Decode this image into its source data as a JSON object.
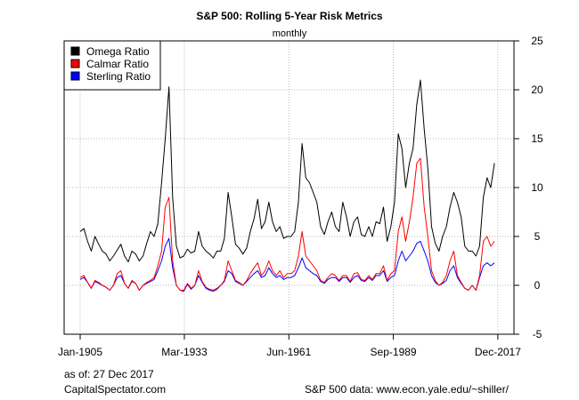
{
  "chart_data": {
    "type": "line",
    "title": "S&P 500: Rolling 5-Year Risk Metrics",
    "subtitle": "monthly",
    "xlabel": "",
    "ylabel": "",
    "x_range": [
      1905.0,
      2017.95
    ],
    "ylim": [
      -5,
      25
    ],
    "y_ticks": [
      -5,
      0,
      5,
      10,
      15,
      20,
      25
    ],
    "x_ticks": [
      {
        "label": "Jan-1905",
        "x": 1905.0
      },
      {
        "label": "Mar-1933",
        "x": 1933.17
      },
      {
        "label": "Jun-1961",
        "x": 1961.42
      },
      {
        "label": "Sep-1989",
        "x": 1989.67
      },
      {
        "label": "Dec-2017",
        "x": 2017.92
      }
    ],
    "grid": true,
    "y_axis_side": "right",
    "legend_position": "top-left",
    "series": [
      {
        "name": "Omega Ratio",
        "color": "#000000",
        "x": [
          1905,
          1906,
          1907,
          1908,
          1909,
          1910,
          1911,
          1912,
          1913,
          1914,
          1915,
          1916,
          1917,
          1918,
          1919,
          1920,
          1921,
          1922,
          1923,
          1924,
          1925,
          1926,
          1927,
          1928,
          1929,
          1930,
          1931,
          1932,
          1933,
          1934,
          1935,
          1936,
          1937,
          1938,
          1939,
          1940,
          1941,
          1942,
          1943,
          1944,
          1945,
          1946,
          1947,
          1948,
          1949,
          1950,
          1951,
          1952,
          1953,
          1954,
          1955,
          1956,
          1957,
          1958,
          1959,
          1960,
          1961,
          1962,
          1963,
          1964,
          1965,
          1966,
          1967,
          1968,
          1969,
          1970,
          1971,
          1972,
          1973,
          1974,
          1975,
          1976,
          1977,
          1978,
          1979,
          1980,
          1981,
          1982,
          1983,
          1984,
          1985,
          1986,
          1987,
          1988,
          1989,
          1990,
          1991,
          1992,
          1993,
          1994,
          1995,
          1996,
          1997,
          1998,
          1999,
          2000,
          2001,
          2002,
          2003,
          2004,
          2005,
          2006,
          2007,
          2008,
          2009,
          2010,
          2011,
          2012,
          2013,
          2014,
          2015,
          2016,
          2017
        ],
        "values": [
          5.5,
          5.8,
          4.5,
          3.5,
          5.0,
          4.2,
          3.5,
          3.2,
          2.5,
          3.0,
          3.6,
          4.2,
          3.0,
          2.4,
          3.5,
          3.2,
          2.5,
          3.0,
          4.3,
          5.5,
          5.0,
          6.3,
          10.5,
          15.0,
          20.3,
          9.0,
          4.0,
          2.8,
          3.0,
          3.7,
          3.3,
          3.5,
          5.5,
          4.0,
          3.5,
          3.2,
          2.8,
          3.5,
          3.5,
          4.8,
          9.5,
          7.0,
          4.2,
          3.8,
          3.2,
          3.8,
          5.5,
          6.8,
          8.8,
          5.8,
          6.5,
          8.5,
          6.5,
          5.5,
          6.0,
          4.8,
          5.0,
          5.0,
          5.5,
          8.5,
          14.5,
          11.0,
          10.5,
          9.5,
          8.5,
          6.0,
          5.2,
          6.5,
          7.5,
          6.0,
          5.5,
          8.5,
          7.0,
          5.0,
          6.5,
          7.0,
          5.2,
          5.0,
          6.0,
          5.0,
          6.5,
          6.3,
          8.0,
          4.5,
          6.0,
          8.5,
          15.5,
          14.0,
          10.0,
          12.5,
          14.0,
          18.5,
          21.0,
          16.0,
          12.0,
          6.0,
          4.3,
          3.5,
          5.0,
          6.0,
          8.0,
          9.5,
          8.5,
          7.0,
          4.0,
          3.5,
          3.5,
          3.0,
          4.0,
          9.0,
          11.0,
          10.0,
          12.5
        ]
      },
      {
        "name": "Calmar Ratio",
        "color": "#ff0000",
        "x": [
          1905,
          1906,
          1907,
          1908,
          1909,
          1910,
          1911,
          1912,
          1913,
          1914,
          1915,
          1916,
          1917,
          1918,
          1919,
          1920,
          1921,
          1922,
          1923,
          1924,
          1925,
          1926,
          1927,
          1928,
          1929,
          1930,
          1931,
          1932,
          1933,
          1934,
          1935,
          1936,
          1937,
          1938,
          1939,
          1940,
          1941,
          1942,
          1943,
          1944,
          1945,
          1946,
          1947,
          1948,
          1949,
          1950,
          1951,
          1952,
          1953,
          1954,
          1955,
          1956,
          1957,
          1958,
          1959,
          1960,
          1961,
          1962,
          1963,
          1964,
          1965,
          1966,
          1967,
          1968,
          1969,
          1970,
          1971,
          1972,
          1973,
          1974,
          1975,
          1976,
          1977,
          1978,
          1979,
          1980,
          1981,
          1982,
          1983,
          1984,
          1985,
          1986,
          1987,
          1988,
          1989,
          1990,
          1991,
          1992,
          1993,
          1994,
          1995,
          1996,
          1997,
          1998,
          1999,
          2000,
          2001,
          2002,
          2003,
          2004,
          2005,
          2006,
          2007,
          2008,
          2009,
          2010,
          2011,
          2012,
          2013,
          2014,
          2015,
          2016,
          2017
        ],
        "values": [
          0.8,
          1.0,
          0.3,
          -0.3,
          0.5,
          0.3,
          0.0,
          -0.2,
          -0.5,
          0.0,
          1.2,
          1.5,
          0.2,
          -0.3,
          0.5,
          0.2,
          -0.5,
          0.0,
          0.3,
          0.5,
          0.8,
          2.0,
          3.5,
          8.0,
          9.0,
          2.5,
          0.0,
          -0.5,
          -0.5,
          0.2,
          -0.3,
          0.0,
          1.5,
          0.4,
          -0.2,
          -0.4,
          -0.5,
          -0.3,
          0.0,
          0.5,
          2.5,
          1.5,
          0.5,
          0.3,
          0.0,
          0.5,
          1.2,
          1.8,
          2.3,
          1.0,
          1.5,
          2.5,
          1.5,
          1.0,
          1.5,
          0.8,
          1.2,
          1.2,
          1.5,
          3.0,
          5.5,
          3.0,
          2.5,
          2.0,
          1.5,
          0.5,
          0.3,
          0.8,
          1.2,
          1.0,
          0.5,
          1.0,
          1.0,
          0.4,
          1.2,
          1.3,
          0.6,
          0.5,
          1.0,
          0.6,
          1.2,
          1.2,
          2.0,
          0.5,
          1.2,
          1.5,
          5.5,
          7.0,
          4.5,
          6.5,
          9.0,
          12.5,
          13.0,
          8.0,
          5.0,
          1.5,
          0.5,
          0.0,
          0.3,
          1.0,
          2.5,
          3.5,
          1.0,
          0.3,
          -0.3,
          -0.5,
          0.0,
          -0.5,
          1.0,
          4.5,
          5.0,
          4.0,
          4.5
        ]
      },
      {
        "name": "Sterling Ratio",
        "color": "#0000ff",
        "x": [
          1905,
          1906,
          1907,
          1908,
          1909,
          1910,
          1911,
          1912,
          1913,
          1914,
          1915,
          1916,
          1917,
          1918,
          1919,
          1920,
          1921,
          1922,
          1923,
          1924,
          1925,
          1926,
          1927,
          1928,
          1929,
          1930,
          1931,
          1932,
          1933,
          1934,
          1935,
          1936,
          1937,
          1938,
          1939,
          1940,
          1941,
          1942,
          1943,
          1944,
          1945,
          1946,
          1947,
          1948,
          1949,
          1950,
          1951,
          1952,
          1953,
          1954,
          1955,
          1956,
          1957,
          1958,
          1959,
          1960,
          1961,
          1962,
          1963,
          1964,
          1965,
          1966,
          1967,
          1968,
          1969,
          1970,
          1971,
          1972,
          1973,
          1974,
          1975,
          1976,
          1977,
          1978,
          1979,
          1980,
          1981,
          1982,
          1983,
          1984,
          1985,
          1986,
          1987,
          1988,
          1989,
          1990,
          1991,
          1992,
          1993,
          1994,
          1995,
          1996,
          1997,
          1998,
          1999,
          2000,
          2001,
          2002,
          2003,
          2004,
          2005,
          2006,
          2007,
          2008,
          2009,
          2010,
          2011,
          2012,
          2013,
          2014,
          2015,
          2016,
          2017
        ],
        "values": [
          0.6,
          0.8,
          0.3,
          -0.3,
          0.4,
          0.2,
          0.0,
          -0.2,
          -0.5,
          0.0,
          0.8,
          1.0,
          0.2,
          -0.3,
          0.4,
          0.2,
          -0.5,
          0.0,
          0.2,
          0.4,
          0.6,
          1.5,
          2.5,
          4.0,
          4.8,
          1.8,
          0.0,
          -0.5,
          -0.6,
          0.1,
          -0.4,
          0.0,
          1.0,
          0.3,
          -0.3,
          -0.5,
          -0.6,
          -0.4,
          0.0,
          0.4,
          1.5,
          1.2,
          0.4,
          0.2,
          0.0,
          0.4,
          0.8,
          1.2,
          1.5,
          0.8,
          1.0,
          1.8,
          1.2,
          0.8,
          1.0,
          0.6,
          0.8,
          0.8,
          1.0,
          1.8,
          2.8,
          1.8,
          1.5,
          1.2,
          1.0,
          0.4,
          0.2,
          0.6,
          0.8,
          0.8,
          0.4,
          0.8,
          0.8,
          0.3,
          0.8,
          1.0,
          0.5,
          0.4,
          0.8,
          0.5,
          1.0,
          1.0,
          1.5,
          0.4,
          0.8,
          1.0,
          2.5,
          3.5,
          2.5,
          3.0,
          3.5,
          4.3,
          4.5,
          3.5,
          2.5,
          1.0,
          0.3,
          0.0,
          0.2,
          0.5,
          1.5,
          2.0,
          0.8,
          0.2,
          -0.3,
          -0.5,
          0.0,
          -0.5,
          0.8,
          2.0,
          2.3,
          2.0,
          2.3
        ]
      }
    ]
  },
  "footer": {
    "as_of": "as of: 27 Dec 2017",
    "site": "CapitalSpectator.com",
    "source": "S&P 500 data: www.econ.yale.edu/~shiller/"
  }
}
